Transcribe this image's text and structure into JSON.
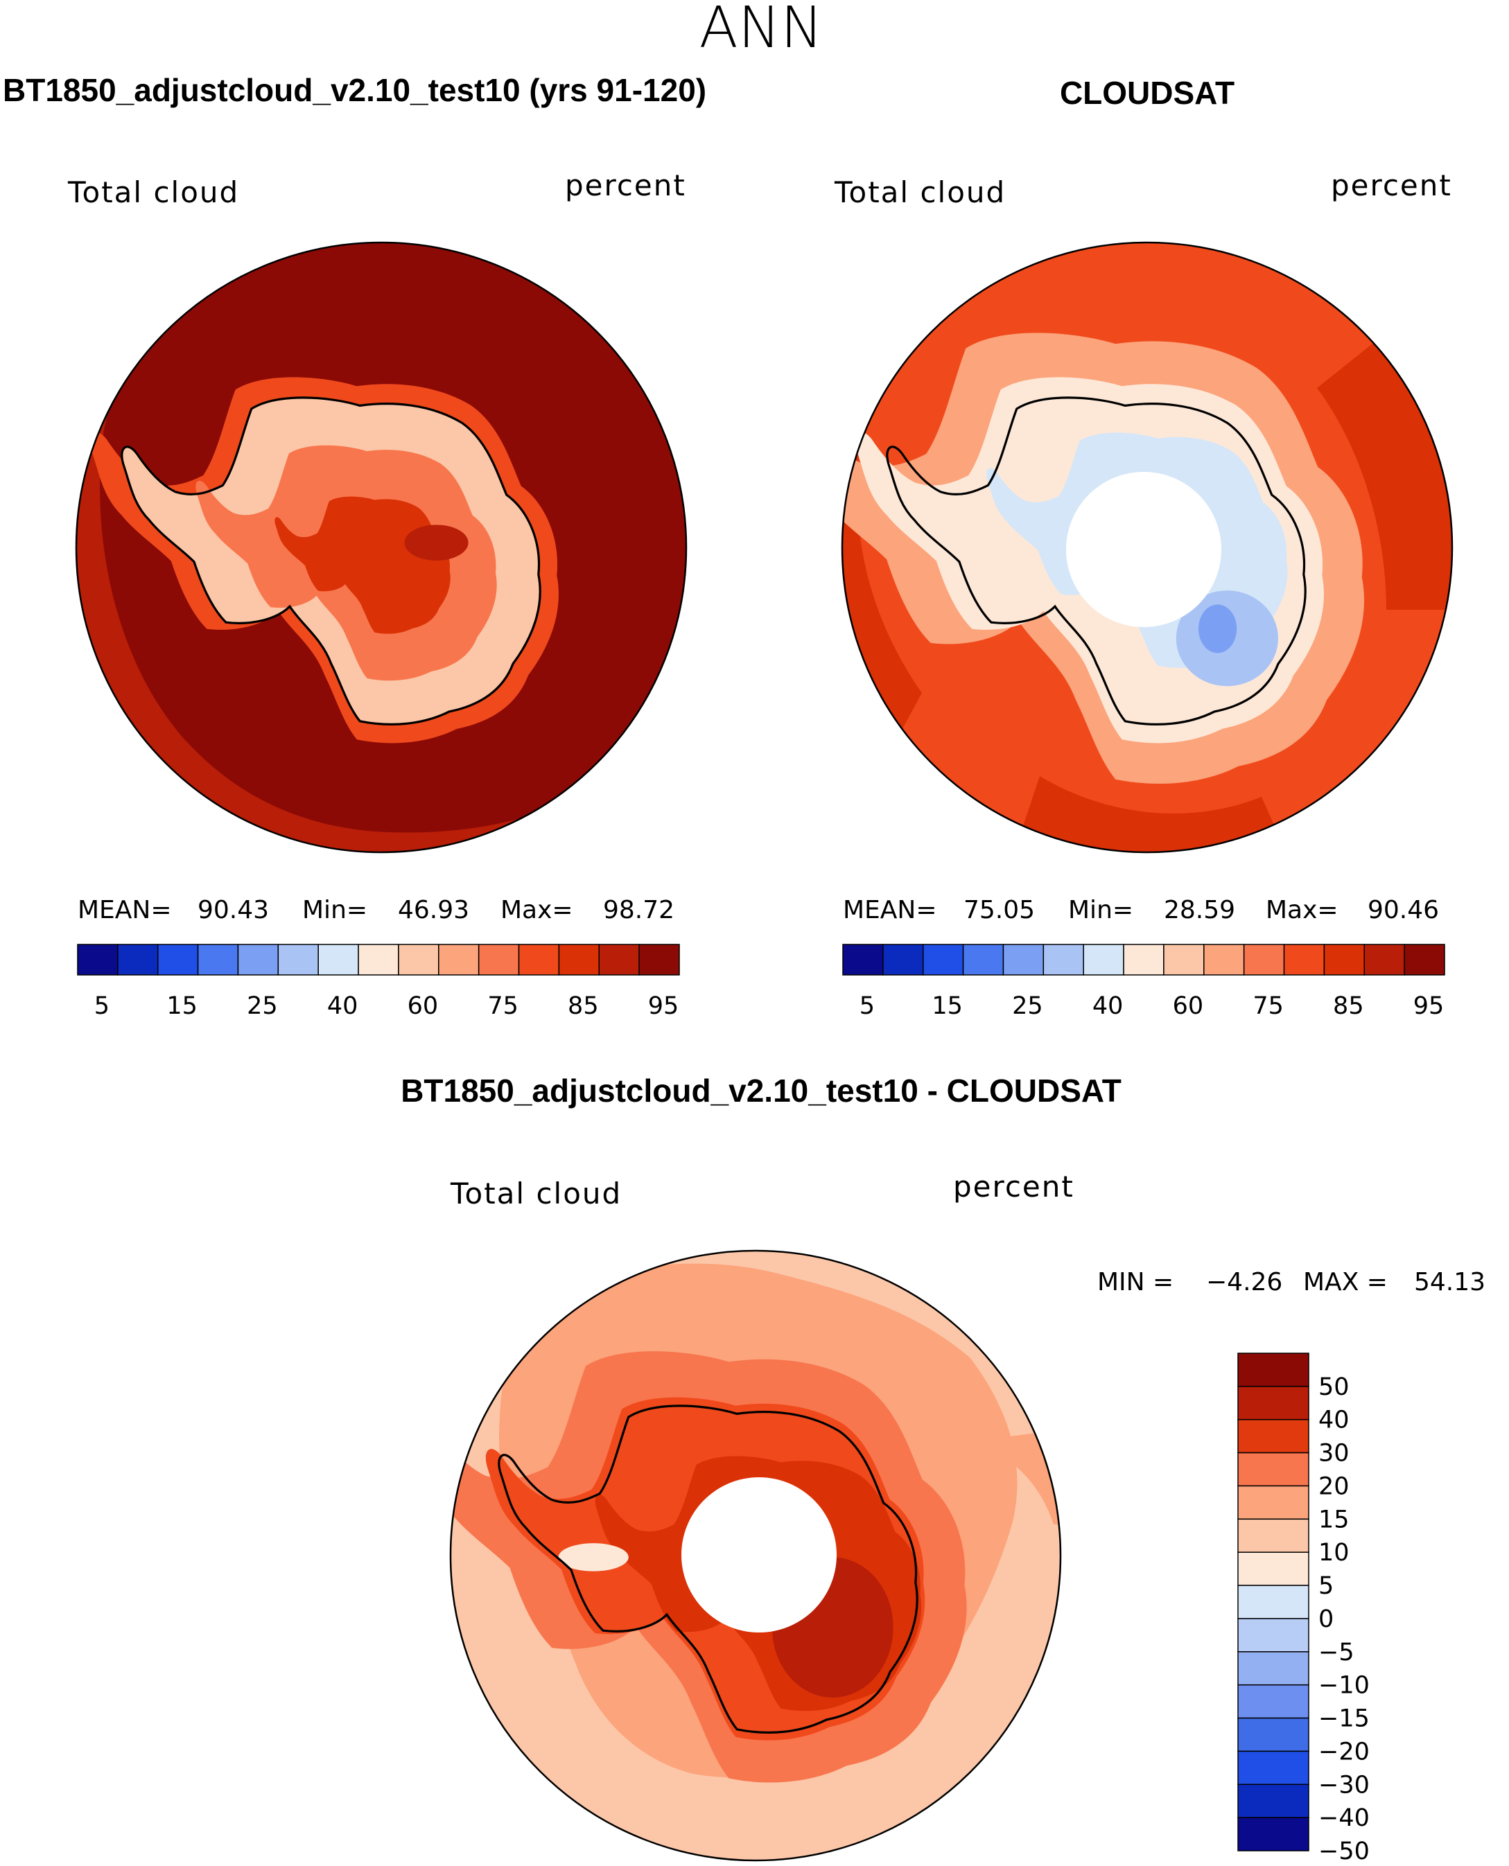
{
  "season": "ANN",
  "panels": [
    {
      "id": "model",
      "title": "BT1850_adjustcloud_v2.10_test10 (yrs 91-120)",
      "variable": "Total cloud",
      "units": "percent",
      "stats": {
        "mean_label": "MEAN=",
        "mean": "90.43",
        "min_label": "Min=",
        "min": "46.93",
        "max_label": "Max=",
        "max": "98.72"
      }
    },
    {
      "id": "obs",
      "title": "CLOUDSAT",
      "variable": "Total cloud",
      "units": "percent",
      "stats": {
        "mean_label": "MEAN=",
        "mean": "75.05",
        "min_label": "Min=",
        "min": "28.59",
        "max_label": "Max=",
        "max": "90.46"
      }
    },
    {
      "id": "diff",
      "title": "BT1850_adjustcloud_v2.10_test10 - CLOUDSAT",
      "variable": "Total cloud",
      "units": "percent",
      "stats": {
        "min_label": "MIN =",
        "min": "−4.26",
        "max_label": "MAX =",
        "max": "54.13"
      }
    }
  ],
  "colorbar_abs": {
    "colors": [
      "#0a0a8c",
      "#0b2bbf",
      "#1f4fe6",
      "#4a78f0",
      "#7b9ff2",
      "#a9c3f5",
      "#d4e6f8",
      "#fde8d8",
      "#fcc7a8",
      "#fca47c",
      "#f8764e",
      "#f04a1c",
      "#da3106",
      "#b81e08",
      "#8c0a06"
    ],
    "ticks": [
      "5",
      "15",
      "25",
      "40",
      "60",
      "75",
      "85",
      "95"
    ]
  },
  "colorbar_diff": {
    "colors": [
      "#8c0a06",
      "#b81e08",
      "#e03a0e",
      "#f8764e",
      "#fca47c",
      "#fcc7a8",
      "#fde8d8",
      "#d4e6f8",
      "#b7cdf6",
      "#93b0f2",
      "#6d8ff0",
      "#3f6de8",
      "#1f4fe6",
      "#0b2bbf",
      "#0a0a8c"
    ],
    "ticks": [
      "50",
      "40",
      "30",
      "20",
      "15",
      "10",
      "5",
      "0",
      "−5",
      "−10",
      "−15",
      "−20",
      "−30",
      "−40",
      "−50"
    ]
  },
  "map_fills": {
    "model": {
      "ocean": "#8c0a06",
      "ring": "#b81e08",
      "coast": "#f04a1c",
      "interior": "#fcc7a8",
      "inner": "#f8764e",
      "core": "#da3106",
      "spot": "#b81e08"
    },
    "obs": {
      "ocean": "#f04a1c",
      "ring": "#da3106",
      "coast": "#fca47c",
      "interior": "#fde8d8",
      "inner": "#d4e6f8",
      "core": "#a9c3f5",
      "spot": "#7b9ff2"
    },
    "diff": {
      "ocean": "#fcc7a8",
      "ring": "#fca47c",
      "coast": "#f8764e",
      "interior": "#f04a1c",
      "inner": "#da3106",
      "core": "#b81e08",
      "spot": "#fde8d8"
    }
  }
}
